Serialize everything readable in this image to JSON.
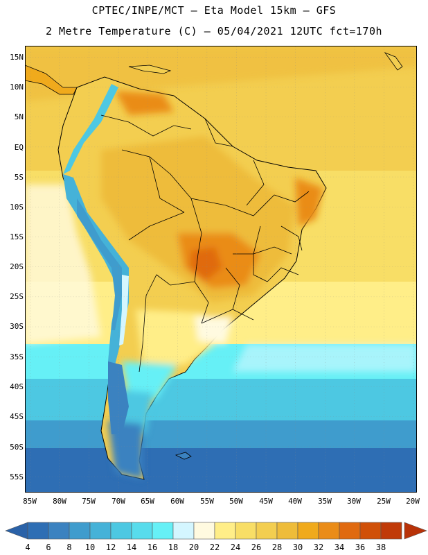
{
  "title": {
    "line1": "CPTEC/INPE/MCT –  Eta Model 15km – GFS",
    "line2": "2 Metre Temperature (C) – 05/04/2021 12UTC fct=170h"
  },
  "map": {
    "lat_labels": [
      "15N",
      "10N",
      "5N",
      "EQ",
      "5S",
      "10S",
      "15S",
      "20S",
      "25S",
      "30S",
      "35S",
      "40S",
      "45S",
      "50S",
      "55S"
    ],
    "lon_labels": [
      "85W",
      "80W",
      "75W",
      "70W",
      "65W",
      "60W",
      "55W",
      "50W",
      "45W",
      "40W",
      "35W",
      "30W",
      "25W",
      "20W"
    ]
  },
  "colorbar": {
    "labels": [
      "4",
      "6",
      "8",
      "10",
      "12",
      "14",
      "16",
      "18",
      "20",
      "22",
      "24",
      "26",
      "28",
      "30",
      "32",
      "34",
      "36",
      "38"
    ],
    "colors": [
      "#2e6eb4",
      "#3b82c0",
      "#3f9ccd",
      "#45b2d8",
      "#4dc8e2",
      "#58dcec",
      "#66f0f6",
      "#d4f6ff",
      "#fffae0",
      "#ffee88",
      "#f8de66",
      "#f3ce50",
      "#eebc3a",
      "#f0aa1c",
      "#ea8c18",
      "#e06a10",
      "#d05008",
      "#c03a08"
    ],
    "low_color": "#2a62a8",
    "high_color": "#b83208"
  }
}
